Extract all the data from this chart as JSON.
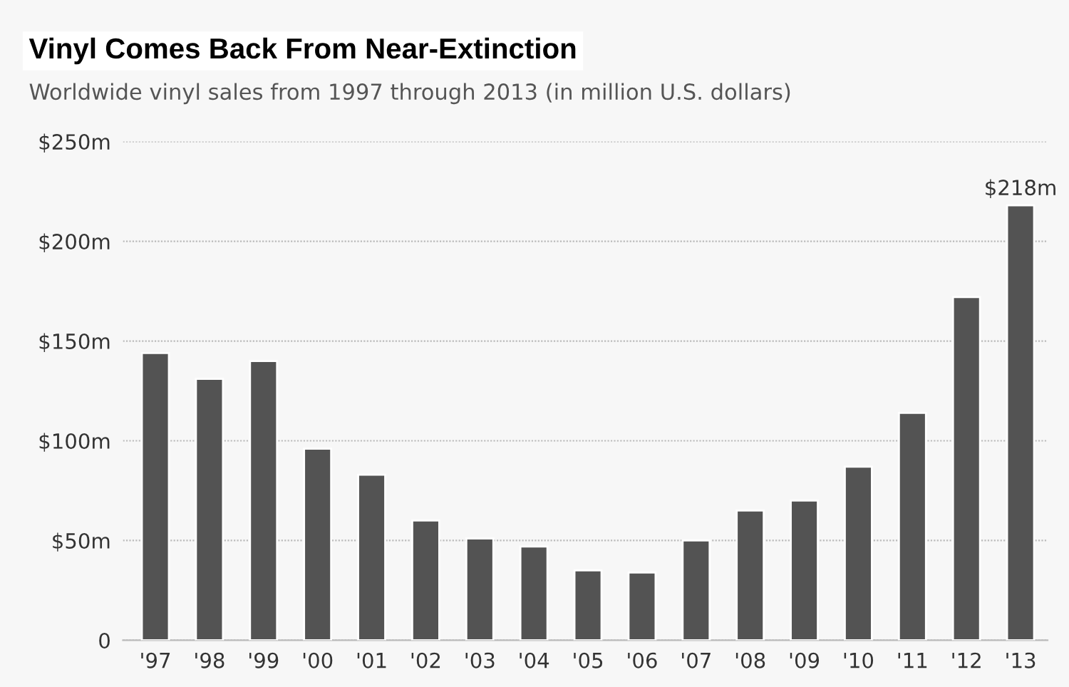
{
  "chart_data": {
    "type": "bar",
    "title": "Vinyl Comes Back From Near-Extinction",
    "subtitle": "Worldwide vinyl sales from 1997 through 2013 (in million U.S. dollars)",
    "categories": [
      "'97",
      "'98",
      "'99",
      "'00",
      "'01",
      "'02",
      "'03",
      "'04",
      "'05",
      "'06",
      "'07",
      "'08",
      "'09",
      "'10",
      "'11",
      "'12",
      "'13"
    ],
    "values": [
      144,
      131,
      140,
      96,
      83,
      60,
      51,
      47,
      35,
      34,
      50,
      65,
      70,
      87,
      114,
      172,
      218
    ],
    "value_labels": [
      null,
      null,
      null,
      null,
      null,
      null,
      null,
      null,
      null,
      null,
      null,
      null,
      null,
      null,
      null,
      null,
      "$218m"
    ],
    "color": "#535353",
    "ylim": [
      0,
      250
    ],
    "yticks": [
      0,
      {
        "value": 50,
        "label": "$50m"
      },
      {
        "value": 100,
        "label": "$100m"
      },
      {
        "value": 150,
        "label": "$150m"
      },
      {
        "value": 200,
        "label": "$200m"
      },
      {
        "value": 250,
        "label": "$250m"
      }
    ],
    "grid": "y"
  }
}
